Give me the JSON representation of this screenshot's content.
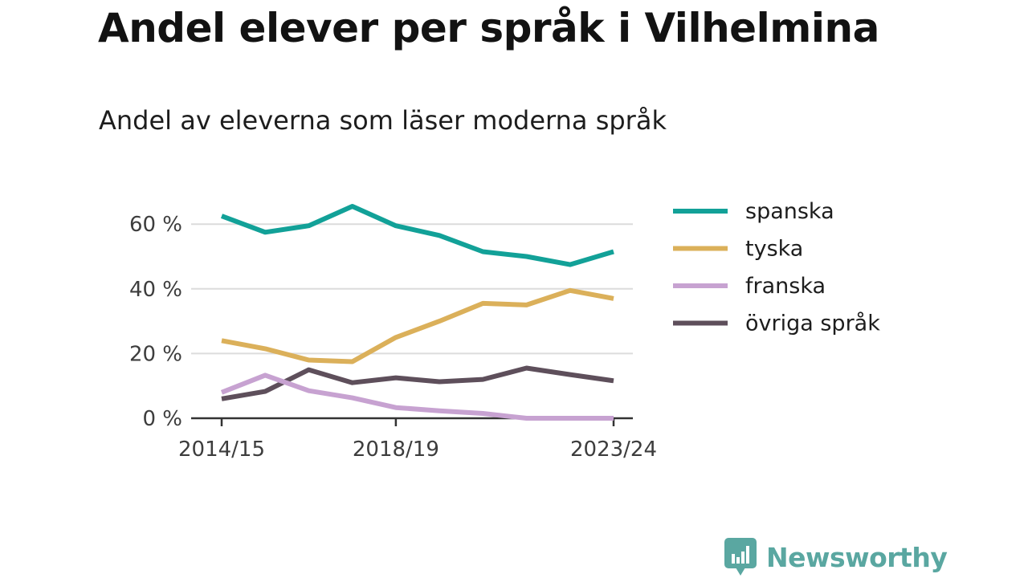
{
  "title": "Andel elever per språk i Vilhelmina",
  "subtitle": "Andel av eleverna som läser moderna språk",
  "brand": {
    "name": "Newsworthy",
    "color": "#5aa7a1",
    "icon": "bar-chart-speech-bubble-icon"
  },
  "chart_data": {
    "type": "line",
    "x": [
      "2014/15",
      "2015/16",
      "2016/17",
      "2017/18",
      "2018/19",
      "2019/20",
      "2020/21",
      "2021/22",
      "2022/23",
      "2023/24"
    ],
    "x_tick_labels": [
      "2014/15",
      "2018/19",
      "2023/24"
    ],
    "y_ticks": [
      0,
      20,
      40,
      60
    ],
    "y_tick_labels": [
      "0 %",
      "20 %",
      "40 %",
      "60 %"
    ],
    "ylim": [
      0,
      66
    ],
    "grid": true,
    "legend_position": "right",
    "series": [
      {
        "name": "spanska",
        "color": "#12a198",
        "values": [
          62.5,
          57.5,
          59.5,
          65.5,
          59.5,
          56.5,
          51.5,
          50,
          47.5,
          51.5
        ]
      },
      {
        "name": "tyska",
        "color": "#dbb05a",
        "values": [
          24,
          21.5,
          18,
          17.5,
          25,
          30,
          35.5,
          35,
          39.5,
          37
        ]
      },
      {
        "name": "franska",
        "color": "#c7a2d1",
        "values": [
          8,
          13.3,
          8.5,
          6.3,
          3.3,
          2.3,
          1.5,
          0,
          0,
          0
        ]
      },
      {
        "name": "övriga språk",
        "color": "#5e4f5b",
        "values": [
          6,
          8.3,
          15,
          11,
          12.5,
          11.3,
          12,
          15.5,
          13.5,
          11.6
        ]
      }
    ]
  }
}
